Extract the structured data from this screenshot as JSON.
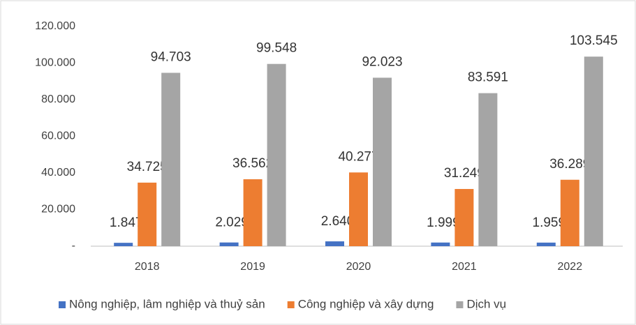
{
  "chart_data": {
    "type": "bar",
    "categories": [
      "2018",
      "2019",
      "2020",
      "2021",
      "2022"
    ],
    "series": [
      {
        "name": "Nông nghiệp, lâm nghiệp và thuỷ sản",
        "color": "#4472c4",
        "values": [
          1847,
          2029,
          2640,
          1999,
          1959
        ],
        "value_labels": [
          "1.847",
          "2.029",
          "2.640",
          "1.999",
          "1.959"
        ]
      },
      {
        "name": "Công nghiệp và xây dựng",
        "color": "#ed7d31",
        "values": [
          34725,
          36562,
          40277,
          31249,
          36289
        ],
        "value_labels": [
          "34.725",
          "36.562",
          "40.277",
          "31.249",
          "36.289"
        ]
      },
      {
        "name": "Dịch vụ",
        "color": "#a5a5a5",
        "values": [
          94703,
          99548,
          92023,
          83591,
          103545
        ],
        "value_labels": [
          "94.703",
          "99.548",
          "92.023",
          "83.591",
          "103.545"
        ]
      }
    ],
    "ylim": [
      0,
      120000
    ],
    "yticks": [
      {
        "value": 0,
        "label": "-"
      },
      {
        "value": 20000,
        "label": "20.000"
      },
      {
        "value": 40000,
        "label": "40.000"
      },
      {
        "value": 60000,
        "label": "60.000"
      },
      {
        "value": 80000,
        "label": "80.000"
      },
      {
        "value": 100000,
        "label": "100.000"
      },
      {
        "value": 120000,
        "label": "120.000"
      }
    ],
    "grid": false,
    "legend": "bottom"
  }
}
